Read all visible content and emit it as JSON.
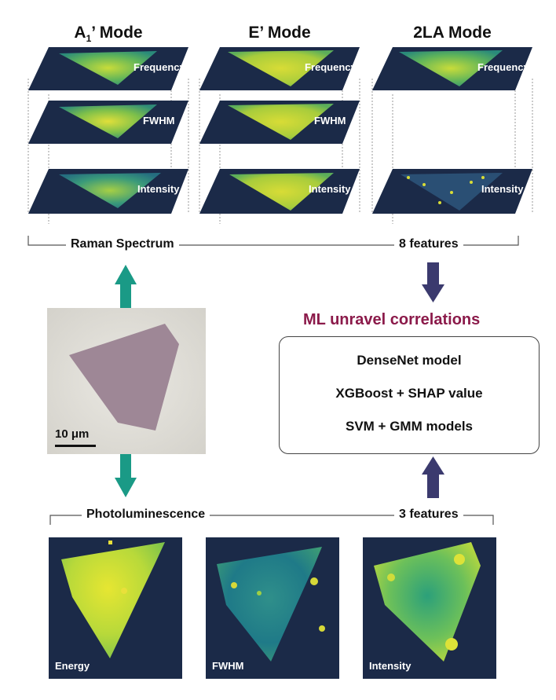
{
  "raman": {
    "modes": [
      {
        "title_base": "A",
        "title_sub": "1",
        "title_rest": "’ Mode",
        "layers": [
          "Frequency",
          "FWHM",
          "Intensity"
        ]
      },
      {
        "title_base": "E’ Mode",
        "title_sub": "",
        "title_rest": "",
        "layers": [
          "Frequency",
          "FWHM",
          "Intensity"
        ]
      },
      {
        "title_base": "2LA Mode",
        "title_sub": "",
        "title_rest": "",
        "layers": [
          "Frequency",
          "Intensity"
        ]
      }
    ],
    "bracket_left": "Raman Spectrum",
    "bracket_right": "8 features"
  },
  "ml": {
    "title": "ML unravel correlations",
    "models": [
      "DenseNet model",
      "XGBoost + SHAP value",
      "SVM + GMM models"
    ]
  },
  "photo": {
    "scale_bar": "10 μm"
  },
  "pl": {
    "bracket_left": "Photoluminescence",
    "bracket_right": "3 features",
    "maps": [
      "Energy",
      "FWHM",
      "Intensity"
    ]
  },
  "colors": {
    "ml_title": "#8b1a4a",
    "teal_arrow": "#1a9a86",
    "navy_arrow": "#3b3a6e",
    "map_bg": "#1b2a48"
  }
}
